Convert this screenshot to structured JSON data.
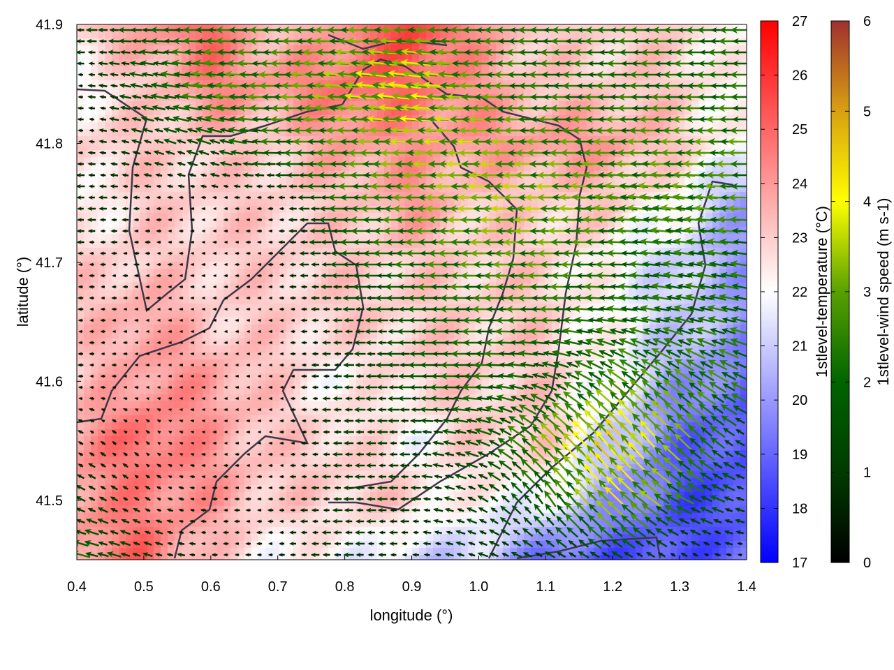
{
  "chart_data": {
    "type": "heatmap",
    "title": "",
    "xlabel": "longitude (°)",
    "ylabel": "latitude (°)",
    "xlim": [
      0.4,
      1.4
    ],
    "ylim": [
      41.45,
      41.9
    ],
    "xticks": [
      "0.4",
      "0.5",
      "0.6",
      "0.7",
      "0.8",
      "0.9",
      "1.0",
      "1.1",
      "1.2",
      "1.3",
      "1.4"
    ],
    "yticks": [
      "41.5",
      "41.6",
      "41.7",
      "41.8",
      "41.9"
    ],
    "grid_lon": [
      0.4,
      0.5,
      0.6,
      0.7,
      0.8,
      0.9,
      1.0,
      1.1,
      1.2,
      1.3,
      1.4
    ],
    "grid_lat": [
      41.9,
      41.85,
      41.8,
      41.75,
      41.7,
      41.65,
      41.6,
      41.55,
      41.5,
      41.45
    ],
    "temperature": {
      "label": "1stlevel-temperature (°C)",
      "range": [
        17,
        27
      ],
      "ticks": [
        "17",
        "18",
        "19",
        "20",
        "21",
        "22",
        "23",
        "24",
        "25",
        "26",
        "27"
      ],
      "colors": {
        "low": "#0000ff",
        "mid": "#ffffff",
        "high": "#ff0000"
      },
      "values": [
        [
          23,
          24,
          25,
          23,
          24,
          26,
          24,
          23,
          23,
          23,
          22
        ],
        [
          22,
          23,
          24.5,
          24,
          25,
          25,
          24,
          23,
          23,
          23,
          22
        ],
        [
          23,
          23,
          23,
          23,
          24,
          24,
          24,
          24,
          24,
          23,
          22
        ],
        [
          22,
          23,
          23,
          23,
          23,
          24,
          23,
          23,
          23,
          22,
          20
        ],
        [
          23,
          23,
          23,
          23,
          23,
          23,
          23,
          23,
          22,
          21,
          20
        ],
        [
          23,
          24,
          23,
          23,
          23,
          23,
          23,
          23,
          22,
          21,
          20
        ],
        [
          23,
          24,
          24,
          23,
          22,
          23,
          23,
          23,
          22,
          20,
          19
        ],
        [
          24,
          25,
          24,
          23,
          23,
          22,
          23,
          23,
          21,
          19,
          18.5
        ],
        [
          24,
          24.5,
          24,
          23,
          23,
          23,
          22,
          22,
          20,
          18.5,
          18.5
        ],
        [
          24,
          25,
          23,
          22,
          22,
          21,
          21,
          19,
          18.5,
          18.5,
          19
        ]
      ]
    },
    "wind": {
      "label": "1stlevel-wind speed (m s-1)",
      "label_main": "1stlevel-wind speed (m s",
      "label_sup": "-1",
      "label_end": ")",
      "range": [
        0,
        6
      ],
      "ticks": [
        "0",
        "1",
        "2",
        "3",
        "4",
        "5",
        "6"
      ],
      "colors": [
        "#000000",
        "#003a00",
        "#006400",
        "#58a000",
        "#ffff00",
        "#d9a010",
        "#a03030"
      ],
      "u": [
        [
          -1,
          -1.5,
          -2,
          -2,
          -2.5,
          -2.5,
          -2,
          -2,
          -2,
          -2,
          -2
        ],
        [
          -0.5,
          -1.5,
          -2.5,
          -2.5,
          -3,
          -3.6,
          -2.5,
          -2,
          -2,
          -2,
          -2
        ],
        [
          -0.5,
          -1,
          -1.5,
          -2,
          -2.5,
          -3,
          -3,
          -2.5,
          -2.5,
          -2.5,
          -2.5
        ],
        [
          -1,
          -0.5,
          -0.3,
          -0.5,
          -2,
          -2.5,
          -3,
          -3,
          -2.5,
          -2.5,
          -2.5
        ],
        [
          -0.5,
          -0.5,
          -0.3,
          -0.5,
          -1.5,
          -2,
          -2.5,
          -2.5,
          -2,
          -2,
          -2
        ],
        [
          -0.5,
          -0.3,
          -0.3,
          -0.3,
          -1,
          -1.5,
          -2,
          -2,
          -2,
          -2,
          -2
        ],
        [
          -0.5,
          -0.3,
          -0.3,
          -0.3,
          -1,
          -1.5,
          -2,
          -1.5,
          -2,
          -2,
          -2
        ],
        [
          -0.5,
          -0.3,
          -0.3,
          -0.3,
          -1,
          -1,
          -1.5,
          -2,
          -2.5,
          -2,
          -1
        ],
        [
          -1,
          -0.5,
          -0.5,
          -0.5,
          -1,
          -1,
          -1,
          -1,
          -2.5,
          -2,
          -1
        ],
        [
          -2,
          -1,
          -0.5,
          -0.5,
          -1,
          -0.5,
          -1,
          -1,
          -1,
          -0.5,
          -0.5
        ]
      ],
      "v": [
        [
          0,
          0,
          0,
          0,
          0,
          0,
          0,
          0,
          0,
          0,
          0
        ],
        [
          0,
          0.3,
          0.3,
          0,
          0.3,
          0.5,
          0,
          0,
          0,
          0,
          0
        ],
        [
          0,
          0.3,
          0.5,
          0,
          0,
          0,
          0,
          0,
          0,
          0,
          0
        ],
        [
          0,
          0,
          0,
          0,
          0,
          0,
          0,
          0,
          0.3,
          0.3,
          0
        ],
        [
          0,
          0,
          0,
          0,
          0,
          0,
          0,
          0,
          0,
          0.3,
          0.3
        ],
        [
          0,
          0,
          0,
          0,
          0,
          0,
          0,
          0,
          0.3,
          0.5,
          0.5
        ],
        [
          0,
          0,
          0,
          0,
          0,
          0,
          0,
          0.5,
          1.5,
          1.5,
          1
        ],
        [
          0.3,
          0.3,
          0,
          0,
          0,
          0,
          0.5,
          2,
          3,
          2,
          0.5
        ],
        [
          0.5,
          0.3,
          0,
          0,
          0,
          0,
          0.5,
          1.5,
          2.5,
          1,
          0.3
        ],
        [
          0.5,
          0.3,
          0,
          0,
          0,
          0,
          0.3,
          0.5,
          0.5,
          0.3,
          0
        ]
      ]
    }
  }
}
